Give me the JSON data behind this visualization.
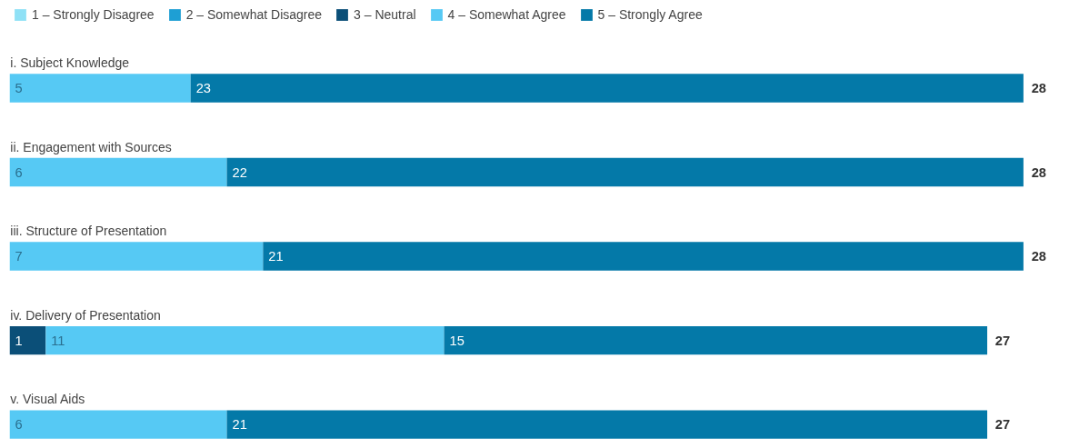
{
  "chart_data": {
    "type": "bar",
    "orientation": "horizontal",
    "stacked": true,
    "legend": "top left",
    "grid": false,
    "tick_labels": false,
    "categories": [
      "i. Subject Knowledge",
      "ii. Engagement with Sources",
      "iii. Structure of Presentation",
      "iv. Delivery of Presentation",
      "v. Visual Aids"
    ],
    "series": [
      {
        "name": "1 – Strongly Disagree",
        "color": "#8fe1f6",
        "values": [
          0,
          0,
          0,
          0,
          0
        ],
        "value_labels": [
          null,
          null,
          null,
          null,
          null
        ]
      },
      {
        "name": "2 – Somewhat Disagree",
        "color": "#1e9fd4",
        "values": [
          0,
          0,
          0,
          0,
          0
        ],
        "value_labels": [
          null,
          null,
          null,
          null,
          null
        ]
      },
      {
        "name": "3 – Neutral",
        "color": "#0b4f78",
        "values": [
          0,
          0,
          0,
          1,
          0
        ],
        "value_labels": [
          null,
          null,
          null,
          "1",
          null
        ]
      },
      {
        "name": "4 – Somewhat Agree",
        "color": "#56c9f4",
        "values": [
          5,
          6,
          7,
          11,
          6
        ],
        "value_labels": [
          "5",
          "6",
          "7",
          "11",
          "6"
        ]
      },
      {
        "name": "5 – Strongly Agree",
        "color": "#0479a8",
        "values": [
          23,
          22,
          21,
          15,
          21
        ],
        "value_labels": [
          "23",
          "22",
          "21",
          "15",
          "21"
        ]
      }
    ],
    "totals": [
      "28",
      "28",
      "28",
      "27",
      "27"
    ]
  }
}
